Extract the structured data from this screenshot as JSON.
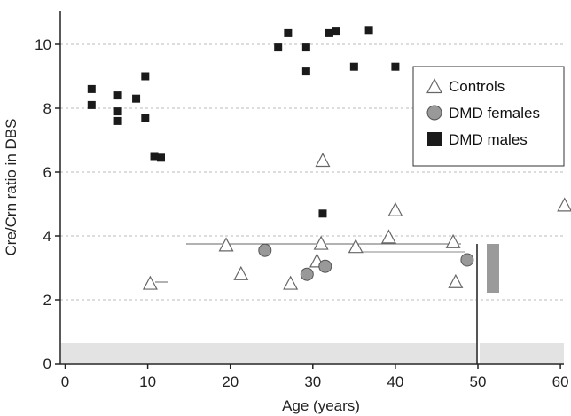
{
  "chart_data": {
    "type": "scatter",
    "title": "",
    "xlabel": "Age (years)",
    "ylabel": "Cre/Crn ratio in DBS",
    "xlim": [
      0,
      61
    ],
    "ylim": [
      0,
      11
    ],
    "xticks": [
      "0",
      "10",
      "20",
      "30",
      "40",
      "50",
      "60"
    ],
    "yticks": [
      "0",
      "2",
      "4",
      "6",
      "8",
      "10"
    ],
    "grid": "horizontal dashed",
    "legend_position": "top-right",
    "series": [
      {
        "name": "Controls",
        "marker": "open-triangle",
        "color": "#666666",
        "points": [
          [
            10.3,
            2.5
          ],
          [
            19.5,
            3.7
          ],
          [
            21.3,
            2.8
          ],
          [
            27.3,
            2.5
          ],
          [
            30.5,
            3.2
          ],
          [
            31.0,
            3.75
          ],
          [
            31.2,
            6.35
          ],
          [
            35.2,
            3.65
          ],
          [
            39.2,
            3.95
          ],
          [
            40.0,
            4.8
          ],
          [
            47.0,
            3.8
          ],
          [
            47.3,
            2.55
          ],
          [
            60.5,
            4.95
          ]
        ]
      },
      {
        "name": "DMD females",
        "marker": "circle",
        "color": "#999999",
        "points": [
          [
            24.2,
            3.55
          ],
          [
            29.3,
            2.8
          ],
          [
            31.5,
            3.05
          ],
          [
            48.7,
            3.25
          ]
        ]
      },
      {
        "name": "DMD males",
        "marker": "square",
        "color": "#1a1a1a",
        "points": [
          [
            3.2,
            8.6
          ],
          [
            3.2,
            8.1
          ],
          [
            6.4,
            8.4
          ],
          [
            6.4,
            7.9
          ],
          [
            6.4,
            7.6
          ],
          [
            8.6,
            8.3
          ],
          [
            9.7,
            9.0
          ],
          [
            9.7,
            7.7
          ],
          [
            10.8,
            6.5
          ],
          [
            11.6,
            6.45
          ],
          [
            25.8,
            9.9
          ],
          [
            27.0,
            10.35
          ],
          [
            29.2,
            9.9
          ],
          [
            29.2,
            9.15
          ],
          [
            31.2,
            4.7
          ],
          [
            32.0,
            10.35
          ],
          [
            32.8,
            10.4
          ],
          [
            35.0,
            9.3
          ],
          [
            36.8,
            10.45
          ],
          [
            40.0,
            9.3
          ]
        ]
      }
    ]
  }
}
